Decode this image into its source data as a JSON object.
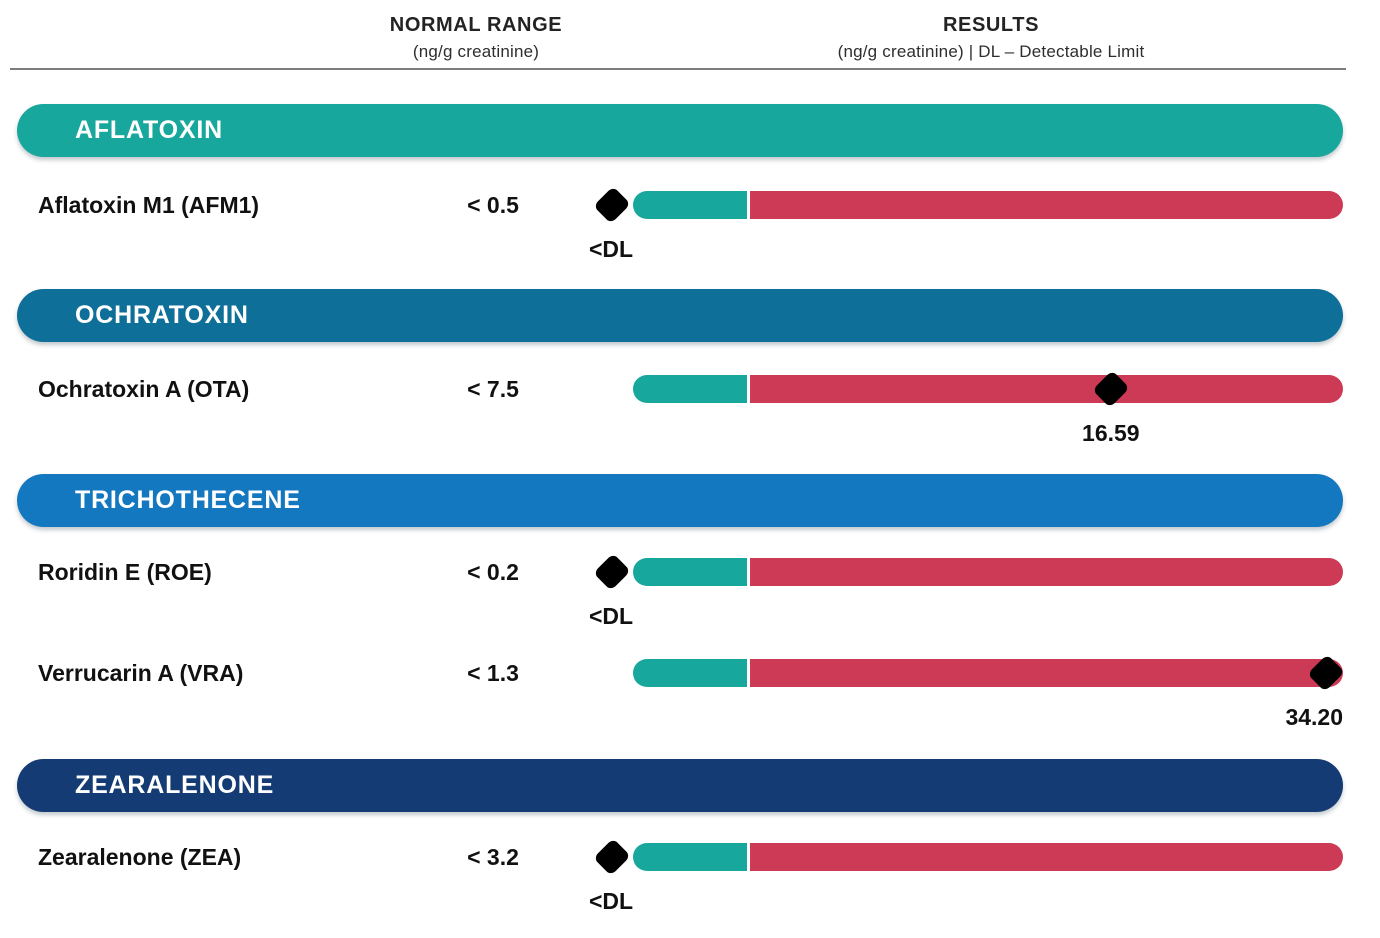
{
  "header": {
    "normal_range_title": "NORMAL RANGE",
    "normal_range_sub": "(ng/g creatinine)",
    "results_title": "RESULTS",
    "results_sub": "(ng/g creatinine) | DL – Detectable Limit"
  },
  "colors": {
    "normal_segment": "#18A79C",
    "elevated_segment": "#CD3A55",
    "marker": "#000000",
    "divider": "#7d7d7d",
    "band_aflatoxin": "#18A79C",
    "band_ochratoxin": "#0E6F99",
    "band_trichothecene": "#1378BF",
    "band_zearalenone": "#143B73"
  },
  "chart_data": {
    "type": "bar",
    "units": "ng/g creatinine",
    "legend": "DL – Detectable Limit",
    "columns": [
      "NORMAL RANGE (ng/g creatinine)",
      "RESULTS (ng/g creatinine)"
    ],
    "bar_model": {
      "normal_segment_color": "#18A79C",
      "elevated_segment_color": "#CD3A55",
      "marker_shape": "black-diamond"
    },
    "sections": [
      {
        "label": "AFLATOXIN",
        "band_color": "#18A79C",
        "rows": [
          {
            "analyte": "Aflatoxin M1 (AFM1)",
            "normal_range": "< 0.5",
            "result_label": "<DL",
            "result_value": null,
            "below_detection_limit": true,
            "marker_frac": null
          }
        ]
      },
      {
        "label": "OCHRATOXIN",
        "band_color": "#0E6F99",
        "rows": [
          {
            "analyte": "Ochratoxin A (OTA)",
            "normal_range": "< 7.5",
            "result_label": "16.59",
            "result_value": 16.59,
            "below_detection_limit": false,
            "marker_frac": 0.673
          }
        ]
      },
      {
        "label": "TRICHOTHECENE",
        "band_color": "#1378BF",
        "rows": [
          {
            "analyte": "Roridin E (ROE)",
            "normal_range": "< 0.2",
            "result_label": "<DL",
            "result_value": null,
            "below_detection_limit": true,
            "marker_frac": null
          },
          {
            "analyte": "Verrucarin A (VRA)",
            "normal_range": "< 1.3",
            "result_label": "34.20",
            "result_value": 34.2,
            "below_detection_limit": false,
            "marker_frac": 0.976
          }
        ]
      },
      {
        "label": "ZEARALENONE",
        "band_color": "#143B73",
        "rows": [
          {
            "analyte": "Zearalenone (ZEA)",
            "normal_range": "< 3.2",
            "result_label": "<DL",
            "result_value": null,
            "below_detection_limit": true,
            "marker_frac": null
          }
        ]
      }
    ]
  }
}
